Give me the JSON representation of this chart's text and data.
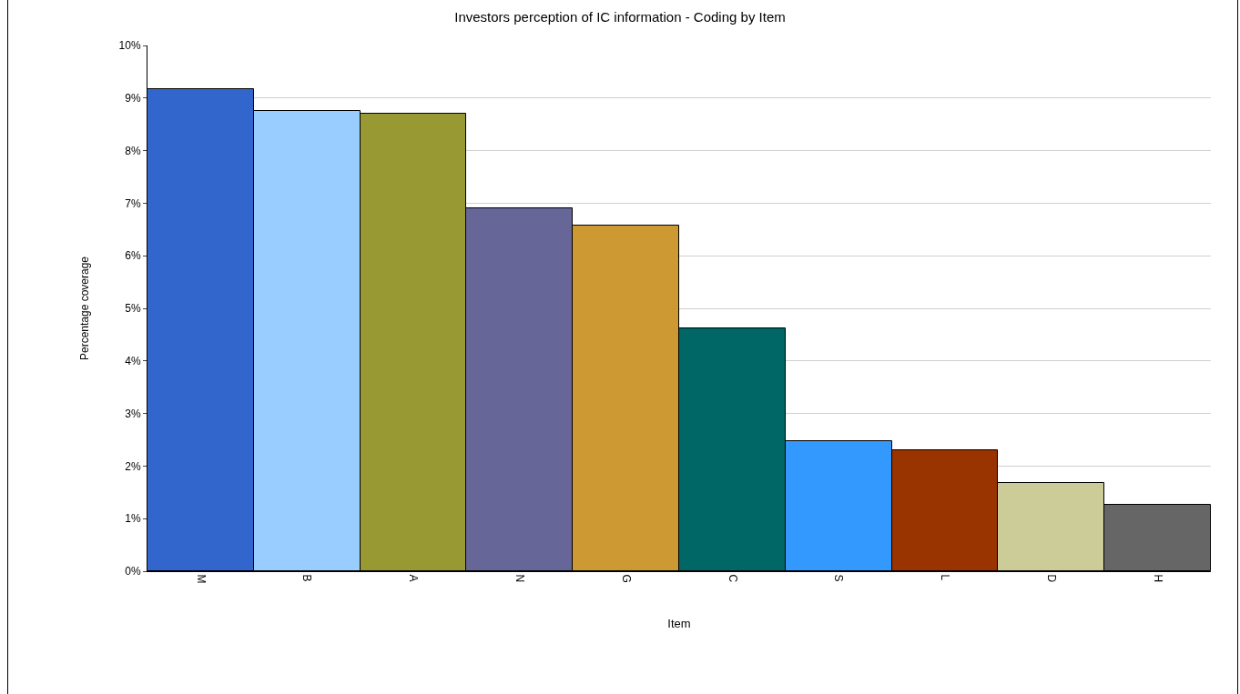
{
  "chart_data": {
    "type": "bar",
    "title": "Investors perception of IC information - Coding by Item",
    "xlabel": "Item",
    "ylabel": "Percentage coverage",
    "categories": [
      "M",
      "B",
      "A",
      "N",
      "G",
      "C",
      "S",
      "L",
      "D",
      "H"
    ],
    "values": [
      9.17,
      8.75,
      8.7,
      6.9,
      6.57,
      4.62,
      2.47,
      2.3,
      1.68,
      1.26
    ],
    "colors": [
      "#3366cc",
      "#99ccff",
      "#999933",
      "#666699",
      "#cc9933",
      "#006666",
      "#3399ff",
      "#993300",
      "#cccc99",
      "#666666"
    ],
    "ylim": [
      0,
      10
    ],
    "yticks": [
      {
        "value": 0,
        "label": "0%"
      },
      {
        "value": 1,
        "label": "1%"
      },
      {
        "value": 2,
        "label": "2%"
      },
      {
        "value": 3,
        "label": "3%"
      },
      {
        "value": 4,
        "label": "4%"
      },
      {
        "value": 5,
        "label": "5%"
      },
      {
        "value": 6,
        "label": "6%"
      },
      {
        "value": 7,
        "label": "7%"
      },
      {
        "value": 8,
        "label": "8%"
      },
      {
        "value": 9,
        "label": "9%"
      },
      {
        "value": 10,
        "label": "10%"
      }
    ],
    "grid": "y",
    "legend": false
  }
}
